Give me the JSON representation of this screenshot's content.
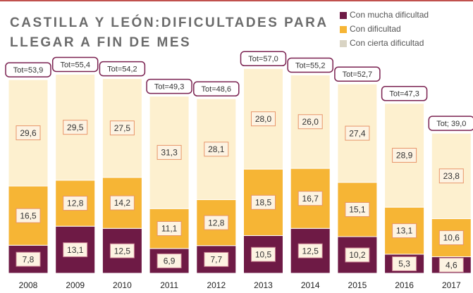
{
  "chart_data": {
    "type": "stacked_bar",
    "title": [
      "CASTILLA Y LEÓN:DIFICULTADES PARA",
      "LLEGAR A FIN DE MES"
    ],
    "categories": [
      "2008",
      "2009",
      "2010",
      "2011",
      "2012",
      "2013",
      "2014",
      "2015",
      "2016",
      "2017"
    ],
    "series": [
      {
        "name": "Con mucha dificultad",
        "color": "#6e1a45",
        "values": [
          7.8,
          13.1,
          12.5,
          6.9,
          7.7,
          10.5,
          12.5,
          10.2,
          5.3,
          4.6
        ],
        "value_labels": [
          "7,8",
          "13,1",
          "12,5",
          "6,9",
          "7,7",
          "10,5",
          "12,5",
          "10,2",
          "5,3",
          "4,6"
        ]
      },
      {
        "name": "Con dificultad",
        "color": "#f6b535",
        "values": [
          16.5,
          12.8,
          14.2,
          11.1,
          12.8,
          18.5,
          16.7,
          15.1,
          13.1,
          10.6
        ],
        "value_labels": [
          "16,5",
          "12,8",
          "14,2",
          "11,1",
          "12,8",
          "18,5",
          "16,7",
          "15,1",
          "13,1",
          "10,6"
        ]
      },
      {
        "name": "Con cierta dificultad",
        "color": "#fdf0cf",
        "values": [
          29.6,
          29.5,
          27.5,
          31.3,
          28.1,
          28.0,
          26.0,
          27.4,
          28.9,
          23.8
        ],
        "value_labels": [
          "29,6",
          "29,5",
          "27,5",
          "31,3",
          "28,1",
          "28,0",
          "26,0",
          "27,4",
          "28,9",
          "23,8"
        ]
      }
    ],
    "totals": [
      53.9,
      55.4,
      54.2,
      49.3,
      48.6,
      57.0,
      55.2,
      52.7,
      47.3,
      39.0
    ],
    "total_labels": [
      "Tot=53,9",
      "Tot=55,4",
      "Tot=54,2",
      "Tot=49,3",
      "Tot=48,6",
      "Tot=57,0",
      "Tot=55,2",
      "Tot=52,7",
      "Tot=47,3",
      "Tot; 39,0"
    ]
  }
}
